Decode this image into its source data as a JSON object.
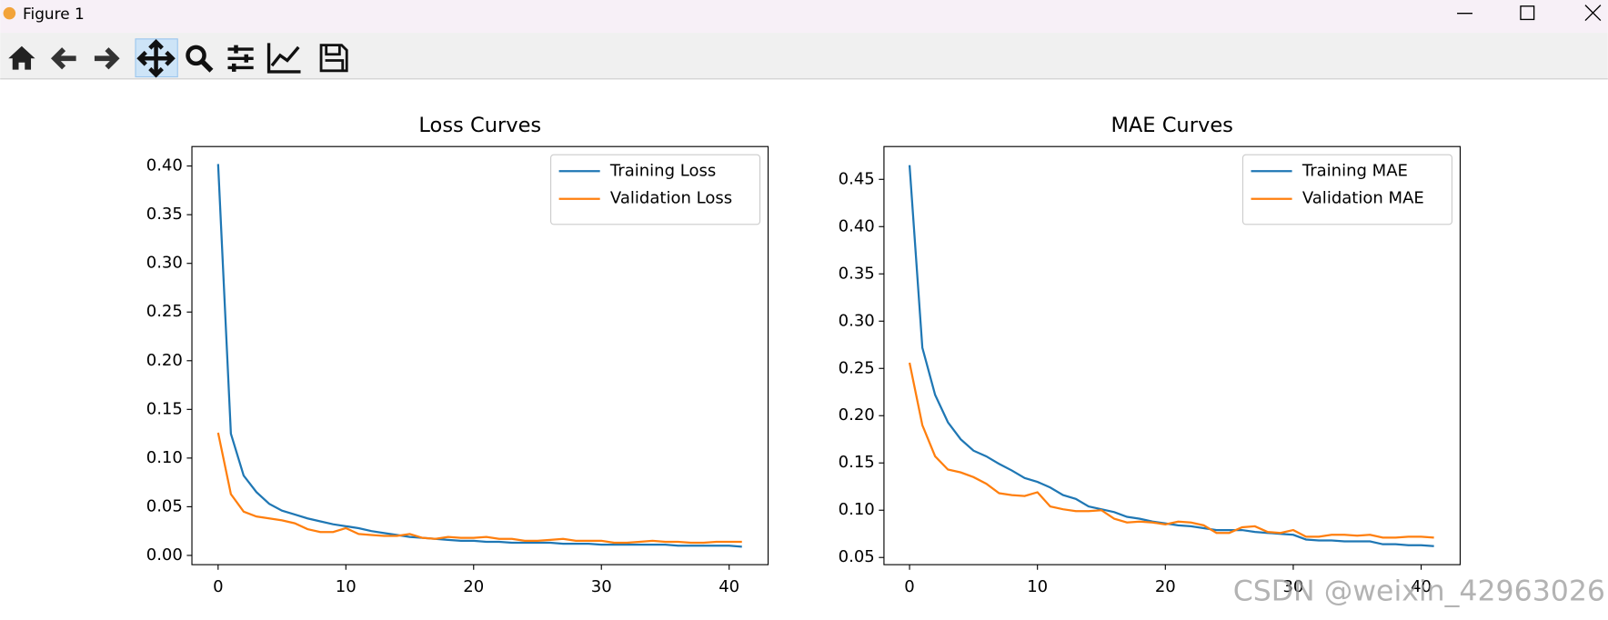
{
  "window_title": "Figure 1",
  "watermark": "CSDN @weixin_42963026",
  "chart_data": [
    {
      "type": "line",
      "title": "Loss Curves",
      "x": [
        0,
        1,
        2,
        3,
        4,
        5,
        6,
        7,
        8,
        9,
        10,
        11,
        12,
        13,
        14,
        15,
        16,
        17,
        18,
        19,
        20,
        21,
        22,
        23,
        24,
        25,
        26,
        27,
        28,
        29,
        30,
        31,
        32,
        33,
        34,
        35,
        36,
        37,
        38,
        39,
        40,
        41
      ],
      "series": [
        {
          "name": "Training Loss",
          "color": "#1f77b4",
          "values": [
            0.402,
            0.125,
            0.082,
            0.065,
            0.053,
            0.046,
            0.042,
            0.038,
            0.035,
            0.032,
            0.03,
            0.028,
            0.025,
            0.023,
            0.021,
            0.019,
            0.018,
            0.017,
            0.016,
            0.015,
            0.015,
            0.014,
            0.014,
            0.013,
            0.013,
            0.013,
            0.013,
            0.012,
            0.012,
            0.012,
            0.011,
            0.011,
            0.011,
            0.011,
            0.011,
            0.011,
            0.01,
            0.01,
            0.01,
            0.01,
            0.01,
            0.009
          ]
        },
        {
          "name": "Validation Loss",
          "color": "#ff7f0e",
          "values": [
            0.126,
            0.063,
            0.045,
            0.04,
            0.038,
            0.036,
            0.033,
            0.027,
            0.024,
            0.024,
            0.028,
            0.022,
            0.021,
            0.02,
            0.02,
            0.022,
            0.018,
            0.017,
            0.019,
            0.018,
            0.018,
            0.019,
            0.017,
            0.017,
            0.015,
            0.015,
            0.016,
            0.017,
            0.015,
            0.015,
            0.015,
            0.013,
            0.013,
            0.014,
            0.015,
            0.014,
            0.014,
            0.013,
            0.013,
            0.014,
            0.014,
            0.014
          ]
        }
      ],
      "xlim": [
        -2.05,
        43.05
      ],
      "xticks": [
        0,
        10,
        20,
        30,
        40
      ],
      "ylim": [
        -0.0095,
        0.42
      ],
      "yticks": [
        {
          "value": 0,
          "label": "0.00"
        },
        0.05,
        {
          "value": 0.1,
          "label": "0.10"
        },
        0.15,
        {
          "value": 0.2,
          "label": "0.20"
        },
        0.25,
        {
          "value": 0.3,
          "label": "0.30"
        },
        0.35,
        {
          "value": 0.4,
          "label": "0.40"
        }
      ],
      "legend": "upper right"
    },
    {
      "type": "line",
      "title": "MAE Curves",
      "x": [
        0,
        1,
        2,
        3,
        4,
        5,
        6,
        7,
        8,
        9,
        10,
        11,
        12,
        13,
        14,
        15,
        16,
        17,
        18,
        19,
        20,
        21,
        22,
        23,
        24,
        25,
        26,
        27,
        28,
        29,
        30,
        31,
        32,
        33,
        34,
        35,
        36,
        37,
        38,
        39,
        40,
        41
      ],
      "series": [
        {
          "name": "Training MAE",
          "color": "#1f77b4",
          "values": [
            0.465,
            0.272,
            0.222,
            0.193,
            0.175,
            0.163,
            0.157,
            0.149,
            0.142,
            0.134,
            0.13,
            0.124,
            0.116,
            0.112,
            0.104,
            0.101,
            0.098,
            0.093,
            0.091,
            0.088,
            0.086,
            0.084,
            0.083,
            0.081,
            0.079,
            0.079,
            0.079,
            0.077,
            0.076,
            0.075,
            0.074,
            0.069,
            0.068,
            0.068,
            0.067,
            0.067,
            0.067,
            0.064,
            0.064,
            0.063,
            0.063,
            0.062
          ]
        },
        {
          "name": "Validation MAE",
          "color": "#ff7f0e",
          "values": [
            0.256,
            0.19,
            0.157,
            0.143,
            0.14,
            0.135,
            0.128,
            0.118,
            0.116,
            0.115,
            0.119,
            0.104,
            0.101,
            0.099,
            0.099,
            0.1,
            0.091,
            0.087,
            0.088,
            0.087,
            0.085,
            0.088,
            0.087,
            0.084,
            0.076,
            0.076,
            0.082,
            0.083,
            0.077,
            0.076,
            0.079,
            0.072,
            0.072,
            0.074,
            0.074,
            0.073,
            0.074,
            0.071,
            0.071,
            0.072,
            0.072,
            0.071
          ]
        }
      ],
      "xlim": [
        -2.0,
        43.05
      ],
      "xticks": [
        0,
        10,
        20,
        30,
        40
      ],
      "ylim": [
        0.0424,
        0.4847
      ],
      "yticks": [
        0.05,
        {
          "value": 0.1,
          "label": "0.10"
        },
        0.15,
        {
          "value": 0.2,
          "label": "0.20"
        },
        0.25,
        {
          "value": 0.3,
          "label": "0.30"
        },
        0.35,
        {
          "value": 0.4,
          "label": "0.40"
        },
        0.45
      ],
      "legend": "upper right"
    }
  ]
}
